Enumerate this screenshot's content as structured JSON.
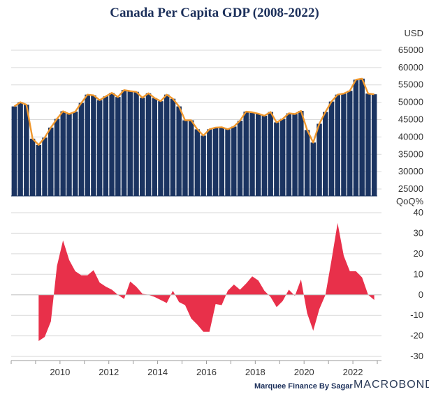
{
  "title": "Canada Per Capita GDP (2008-2022)",
  "credit": "Marquee Finance By Sagar",
  "logo": "MACROBOND",
  "chart_data": [
    {
      "type": "bar",
      "subtype": "bar-with-line-overlay",
      "unit_label": "USD",
      "start_quarter": "2008Q1",
      "ylim": [
        23000,
        67000
      ],
      "yticks": [
        25000,
        30000,
        35000,
        40000,
        45000,
        50000,
        55000,
        60000,
        65000
      ],
      "bar_color": "#1b3461",
      "line_color": "#f0982e",
      "values": [
        48800,
        50000,
        49300,
        39500,
        37700,
        39800,
        42700,
        45200,
        47400,
        46600,
        47300,
        49800,
        52200,
        52000,
        50600,
        51700,
        52700,
        51500,
        53500,
        53200,
        53000,
        51300,
        52600,
        51200,
        50300,
        52200,
        51000,
        48800,
        44800,
        44800,
        42200,
        40400,
        42200,
        42700,
        42800,
        42200,
        43000,
        44700,
        47300,
        47100,
        46700,
        46100,
        47200,
        44200,
        45200,
        46800,
        46600,
        47500,
        42000,
        38400,
        43800,
        47200,
        50200,
        52200,
        52500,
        53300,
        56500,
        56800,
        52500,
        52300
      ]
    },
    {
      "type": "area",
      "unit_label": "QoQ%",
      "ylim": [
        -32,
        41
      ],
      "yticks": [
        -30,
        -20,
        -10,
        0,
        10,
        20,
        30,
        40
      ],
      "fill_color": "#e8304a",
      "x_tick_labels": [
        "2010",
        "2012",
        "2014",
        "2016",
        "2018",
        "2020",
        "2022"
      ],
      "x_tick_years": [
        2010,
        2012,
        2014,
        2016,
        2018,
        2020,
        2022
      ],
      "values": [
        null,
        null,
        null,
        null,
        -22.5,
        -20.5,
        -13,
        14,
        26.5,
        17,
        11.5,
        9.5,
        9.5,
        12,
        6,
        4,
        2.5,
        0,
        -2,
        6.5,
        4,
        0.5,
        0,
        -1,
        -2.5,
        -4,
        2,
        -3.5,
        -5,
        -11.5,
        -14.5,
        -18,
        -18,
        -4.5,
        -5,
        2,
        5,
        2.5,
        5.5,
        9,
        7,
        2,
        -1,
        -6,
        -3,
        2.5,
        -0.5,
        7.5,
        -9,
        -17.5,
        -7,
        0,
        17,
        35,
        19,
        11.5,
        11.5,
        8.5,
        0,
        -2.5
      ]
    }
  ]
}
